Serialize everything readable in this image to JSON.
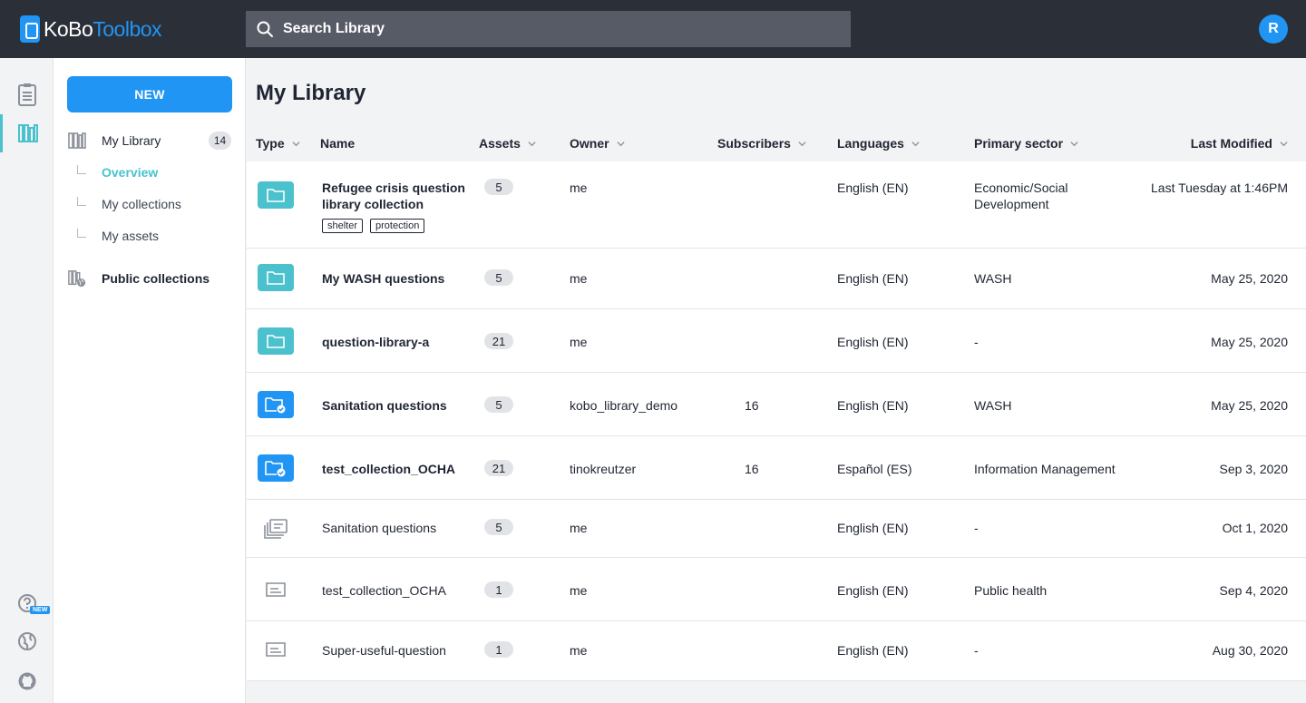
{
  "app": {
    "logo_part1": "KoBo",
    "logo_part2": "Toolbox",
    "user_initial": "R"
  },
  "search": {
    "placeholder": "Search Library"
  },
  "rail": {
    "new_badge": "NEW"
  },
  "sidebar": {
    "new_button": "NEW",
    "my_library": "My Library",
    "my_library_count": "14",
    "sub_items": [
      "Overview",
      "My collections",
      "My assets"
    ],
    "public_collections": "Public collections"
  },
  "main": {
    "title": "My Library",
    "columns": {
      "type": "Type",
      "name": "Name",
      "assets": "Assets",
      "owner": "Owner",
      "subscribers": "Subscribers",
      "languages": "Languages",
      "sector": "Primary sector",
      "modified": "Last Modified"
    },
    "rows": [
      {
        "type": "collection",
        "name": "Refugee crisis question library collection",
        "tags": [
          "shelter",
          "protection"
        ],
        "assets": "5",
        "owner": "me",
        "subscribers": "",
        "language": "English (EN)",
        "sector": "Economic/Social Development",
        "modified": "Last Tuesday at 1:46PM"
      },
      {
        "type": "collection",
        "name": "My WASH questions",
        "tags": [],
        "assets": "5",
        "owner": "me",
        "subscribers": "",
        "language": "English (EN)",
        "sector": "WASH",
        "modified": "May 25, 2020"
      },
      {
        "type": "collection",
        "name": "question-library-a",
        "tags": [],
        "assets": "21",
        "owner": "me",
        "subscribers": "",
        "language": "English (EN)",
        "sector": "-",
        "modified": "May 25, 2020"
      },
      {
        "type": "subscribed",
        "name": "Sanitation questions",
        "tags": [],
        "assets": "5",
        "owner": "kobo_library_demo",
        "subscribers": "16",
        "language": "English (EN)",
        "sector": "WASH",
        "modified": "May 25, 2020"
      },
      {
        "type": "subscribed",
        "name": "test_collection_OCHA",
        "tags": [],
        "assets": "21",
        "owner": "tinokreutzer",
        "subscribers": "16",
        "language": "Español (ES)",
        "sector": "Information Management",
        "modified": "Sep 3, 2020"
      },
      {
        "type": "block",
        "name": "Sanitation questions",
        "tags": [],
        "assets": "5",
        "owner": "me",
        "subscribers": "",
        "language": "English (EN)",
        "sector": "-",
        "modified": "Oct 1, 2020"
      },
      {
        "type": "question",
        "name": "test_collection_OCHA",
        "tags": [],
        "assets": "1",
        "owner": "me",
        "subscribers": "",
        "language": "English (EN)",
        "sector": "Public health",
        "modified": "Sep 4, 2020"
      },
      {
        "type": "question",
        "name": "Super-useful-question",
        "tags": [],
        "assets": "1",
        "owner": "me",
        "subscribers": "",
        "language": "English (EN)",
        "sector": "-",
        "modified": "Aug 30, 2020"
      }
    ]
  },
  "colors": {
    "accent": "#2095f3",
    "teal": "#4ac1cc",
    "topbar": "#2b2f38"
  }
}
